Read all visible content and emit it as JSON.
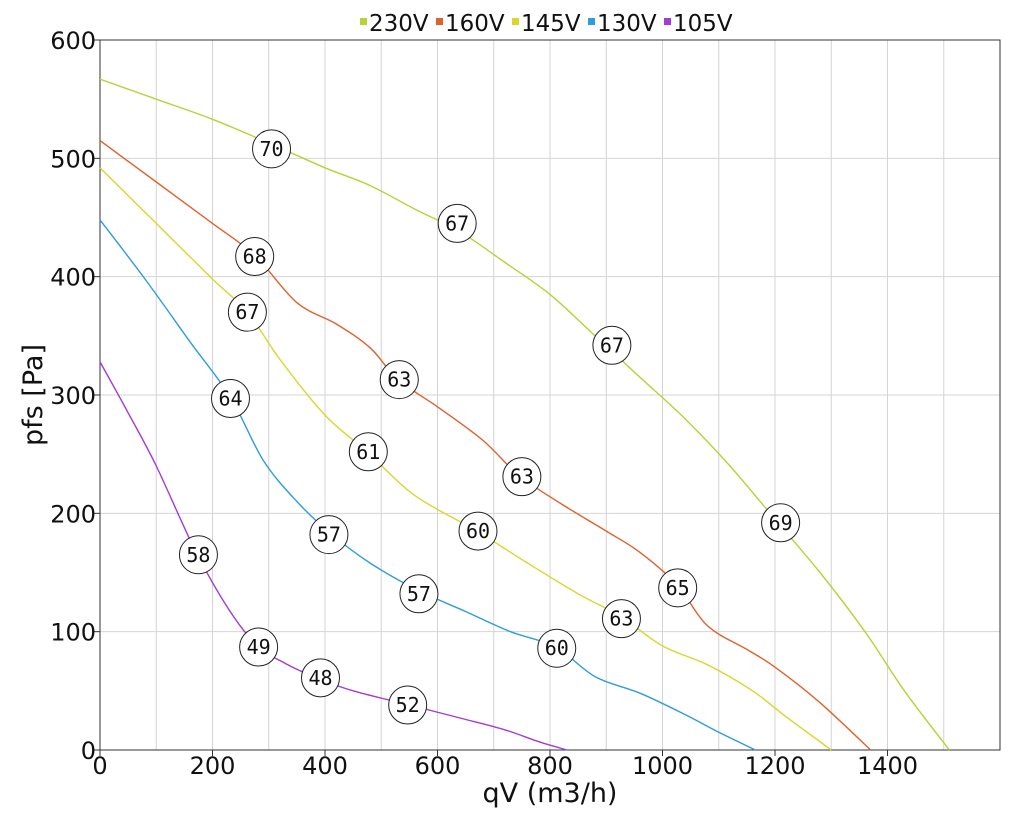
{
  "chart_data": {
    "type": "line",
    "title": "",
    "xlabel": "qV (m3/h)",
    "ylabel": "pfs [Pa]",
    "xlim": [
      0,
      1600
    ],
    "ylim": [
      0,
      600
    ],
    "x_ticks": [
      0,
      200,
      400,
      600,
      800,
      1000,
      1200,
      1400
    ],
    "y_ticks": [
      0,
      100,
      200,
      300,
      400,
      500,
      600
    ],
    "grid": true,
    "legend_position": "top",
    "series": [
      {
        "name": "230V",
        "color": "#b5d334",
        "points": [
          [
            0,
            567
          ],
          [
            100,
            550
          ],
          [
            200,
            533
          ],
          [
            300,
            513
          ],
          [
            400,
            492
          ],
          [
            480,
            477
          ],
          [
            560,
            457
          ],
          [
            640,
            438
          ],
          [
            720,
            412
          ],
          [
            800,
            385
          ],
          [
            880,
            350
          ],
          [
            960,
            315
          ],
          [
            1040,
            280
          ],
          [
            1120,
            240
          ],
          [
            1200,
            195
          ],
          [
            1280,
            150
          ],
          [
            1360,
            100
          ],
          [
            1430,
            50
          ],
          [
            1510,
            0
          ]
        ],
        "labels": [
          {
            "x": 305,
            "y": 508,
            "text": "70"
          },
          {
            "x": 635,
            "y": 445,
            "text": "67"
          },
          {
            "x": 910,
            "y": 342,
            "text": "67"
          },
          {
            "x": 1210,
            "y": 192,
            "text": "69"
          }
        ]
      },
      {
        "name": "160V",
        "color": "#e0612c",
        "points": [
          [
            0,
            515
          ],
          [
            100,
            480
          ],
          [
            200,
            445
          ],
          [
            275,
            418
          ],
          [
            350,
            378
          ],
          [
            420,
            360
          ],
          [
            480,
            340
          ],
          [
            530,
            313
          ],
          [
            600,
            290
          ],
          [
            680,
            262
          ],
          [
            745,
            232
          ],
          [
            820,
            208
          ],
          [
            900,
            185
          ],
          [
            960,
            167
          ],
          [
            1025,
            140
          ],
          [
            1080,
            105
          ],
          [
            1150,
            85
          ],
          [
            1200,
            70
          ],
          [
            1280,
            40
          ],
          [
            1370,
            0
          ]
        ],
        "labels": [
          {
            "x": 275,
            "y": 417,
            "text": "68"
          },
          {
            "x": 532,
            "y": 313,
            "text": "63"
          },
          {
            "x": 750,
            "y": 231,
            "text": "63"
          },
          {
            "x": 1027,
            "y": 137,
            "text": "65"
          }
        ]
      },
      {
        "name": "145V",
        "color": "#dcd52a",
        "points": [
          [
            0,
            492
          ],
          [
            100,
            445
          ],
          [
            200,
            398
          ],
          [
            262,
            370
          ],
          [
            320,
            330
          ],
          [
            400,
            283
          ],
          [
            475,
            252
          ],
          [
            560,
            215
          ],
          [
            670,
            185
          ],
          [
            760,
            158
          ],
          [
            850,
            132
          ],
          [
            925,
            113
          ],
          [
            1000,
            88
          ],
          [
            1080,
            72
          ],
          [
            1160,
            50
          ],
          [
            1220,
            28
          ],
          [
            1300,
            0
          ]
        ],
        "labels": [
          {
            "x": 262,
            "y": 370,
            "text": "67"
          },
          {
            "x": 477,
            "y": 252,
            "text": "61"
          },
          {
            "x": 672,
            "y": 185,
            "text": "60"
          },
          {
            "x": 927,
            "y": 111,
            "text": "63"
          }
        ]
      },
      {
        "name": "130V",
        "color": "#2d9ce0",
        "points": [
          [
            0,
            448
          ],
          [
            80,
            398
          ],
          [
            160,
            345
          ],
          [
            232,
            298
          ],
          [
            290,
            245
          ],
          [
            350,
            210
          ],
          [
            410,
            183
          ],
          [
            480,
            158
          ],
          [
            565,
            135
          ],
          [
            650,
            117
          ],
          [
            730,
            100
          ],
          [
            810,
            87
          ],
          [
            880,
            62
          ],
          [
            960,
            48
          ],
          [
            1040,
            30
          ],
          [
            1100,
            15
          ],
          [
            1165,
            0
          ]
        ],
        "labels": [
          {
            "x": 232,
            "y": 297,
            "text": "64"
          },
          {
            "x": 407,
            "y": 182,
            "text": "57"
          },
          {
            "x": 567,
            "y": 132,
            "text": "57"
          },
          {
            "x": 812,
            "y": 86,
            "text": "60"
          }
        ]
      },
      {
        "name": "105V",
        "color": "#a43ad9",
        "points": [
          [
            0,
            328
          ],
          [
            50,
            285
          ],
          [
            100,
            240
          ],
          [
            170,
            168
          ],
          [
            230,
            118
          ],
          [
            280,
            88
          ],
          [
            330,
            73
          ],
          [
            390,
            60
          ],
          [
            450,
            50
          ],
          [
            550,
            38
          ],
          [
            640,
            27
          ],
          [
            720,
            17
          ],
          [
            780,
            7
          ],
          [
            830,
            0
          ]
        ],
        "labels": [
          {
            "x": 175,
            "y": 165,
            "text": "58"
          },
          {
            "x": 282,
            "y": 87,
            "text": "49"
          },
          {
            "x": 392,
            "y": 61,
            "text": "48"
          },
          {
            "x": 547,
            "y": 38,
            "text": "52"
          }
        ]
      }
    ]
  }
}
